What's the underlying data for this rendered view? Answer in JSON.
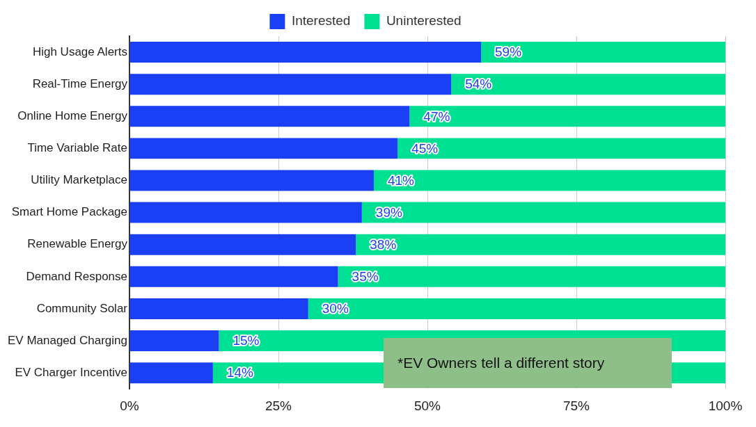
{
  "chart_data": {
    "type": "bar",
    "orientation": "horizontal",
    "stacked": true,
    "categories": [
      "High Usage Alerts",
      "Real-Time Energy",
      "Online Home Energy",
      "Time Variable Rate",
      "Utility Marketplace",
      "Smart Home Package",
      "Renewable Energy",
      "Demand Response",
      "Community Solar",
      "EV Managed Charging",
      "EV Charger Incentive"
    ],
    "series": [
      {
        "name": "Interested",
        "color": "#1a3ff5",
        "values": [
          59,
          54,
          47,
          45,
          41,
          39,
          38,
          35,
          30,
          15,
          14
        ],
        "value_labels": [
          "59%",
          "54%",
          "47%",
          "45%",
          "41%",
          "39%",
          "38%",
          "35%",
          "30%",
          "15%",
          "14%"
        ]
      },
      {
        "name": "Uninterested",
        "color": "#00e092",
        "values": [
          41,
          46,
          53,
          55,
          59,
          61,
          62,
          65,
          70,
          85,
          86
        ]
      }
    ],
    "xlim": [
      0,
      100
    ],
    "xticks": [
      {
        "value": 0,
        "label": "0%"
      },
      {
        "value": 25,
        "label": "25%"
      },
      {
        "value": 50,
        "label": "50%"
      },
      {
        "value": 75,
        "label": "75%"
      },
      {
        "value": 100,
        "label": "100%"
      }
    ],
    "grid": "x",
    "legend": "top",
    "annotations": [
      "*EV Owners tell a different story"
    ]
  }
}
